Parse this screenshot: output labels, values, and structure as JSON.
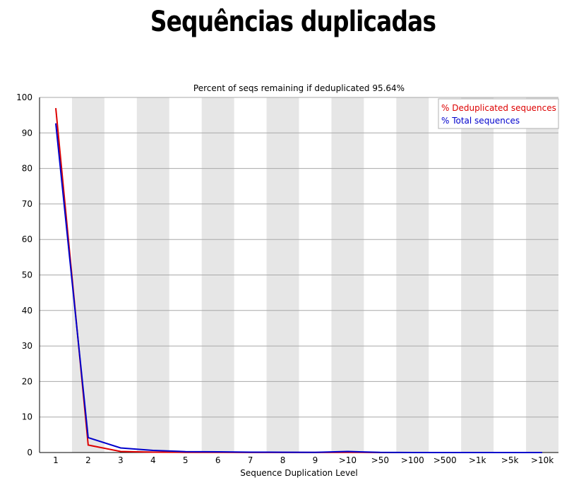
{
  "slide": {
    "title": "Sequências duplicadas"
  },
  "chart_data": {
    "type": "line",
    "title": "Percent of seqs remaining if deduplicated 95.64%",
    "xlabel": "Sequence Duplication Level",
    "ylabel": "",
    "ylim": [
      0,
      100
    ],
    "yticks": [
      0,
      10,
      20,
      30,
      40,
      50,
      60,
      70,
      80,
      90,
      100
    ],
    "categories": [
      "1",
      "2",
      "3",
      "4",
      "5",
      "6",
      "7",
      "8",
      "9",
      ">10",
      ">50",
      ">100",
      ">500",
      ">1k",
      ">5k",
      ">10k"
    ],
    "grid": true,
    "alternating_column_shading": true,
    "legend_position": "top-right",
    "series": [
      {
        "name": "% Deduplicated sequences",
        "color": "#dd0000",
        "values": [
          97.0,
          2.1,
          0.3,
          0.1,
          0.05,
          0.03,
          0.01,
          0.01,
          0.01,
          0.05,
          0.0,
          0.0,
          0.0,
          0.0,
          0.0,
          0.0
        ]
      },
      {
        "name": "% Total sequences",
        "color": "#0000cc",
        "values": [
          92.7,
          4.2,
          1.3,
          0.6,
          0.25,
          0.2,
          0.1,
          0.07,
          0.06,
          0.3,
          0.03,
          0.0,
          0.0,
          0.0,
          0.0,
          0.0
        ]
      }
    ]
  }
}
